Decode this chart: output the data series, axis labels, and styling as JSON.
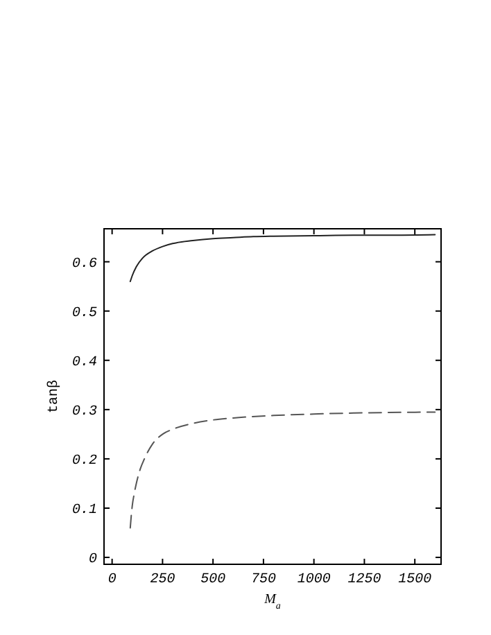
{
  "chart_data": {
    "type": "line",
    "xlabel": "M$_{a}$",
    "ylabel": "tanβ",
    "xlim": [
      -40,
      1630
    ],
    "ylim": [
      -0.014,
      0.667
    ],
    "xticks": [
      0,
      250,
      500,
      750,
      1000,
      1250,
      1500
    ],
    "yticks": [
      0,
      0.1,
      0.2,
      0.3,
      0.4,
      0.5,
      0.6
    ],
    "grid": false,
    "series": [
      {
        "color": "#222222",
        "line_style": "solid",
        "x": [
          90,
          100,
          120,
          150,
          200,
          250,
          300,
          400,
          500,
          600,
          700,
          800,
          1000,
          1200,
          1400,
          1600
        ],
        "values": [
          0.56,
          0.572,
          0.59,
          0.607,
          0.622,
          0.631,
          0.637,
          0.643,
          0.647,
          0.649,
          0.651,
          0.652,
          0.653,
          0.654,
          0.654,
          0.655
        ]
      },
      {
        "color": "#555555",
        "line_style": "dashed",
        "x": [
          90,
          95,
          100,
          110,
          120,
          140,
          160,
          200,
          250,
          300,
          400,
          500,
          600,
          800,
          1000,
          1200,
          1600
        ],
        "values": [
          0.06,
          0.085,
          0.105,
          0.13,
          0.15,
          0.18,
          0.2,
          0.23,
          0.25,
          0.26,
          0.272,
          0.279,
          0.283,
          0.288,
          0.291,
          0.293,
          0.295
        ]
      }
    ]
  }
}
